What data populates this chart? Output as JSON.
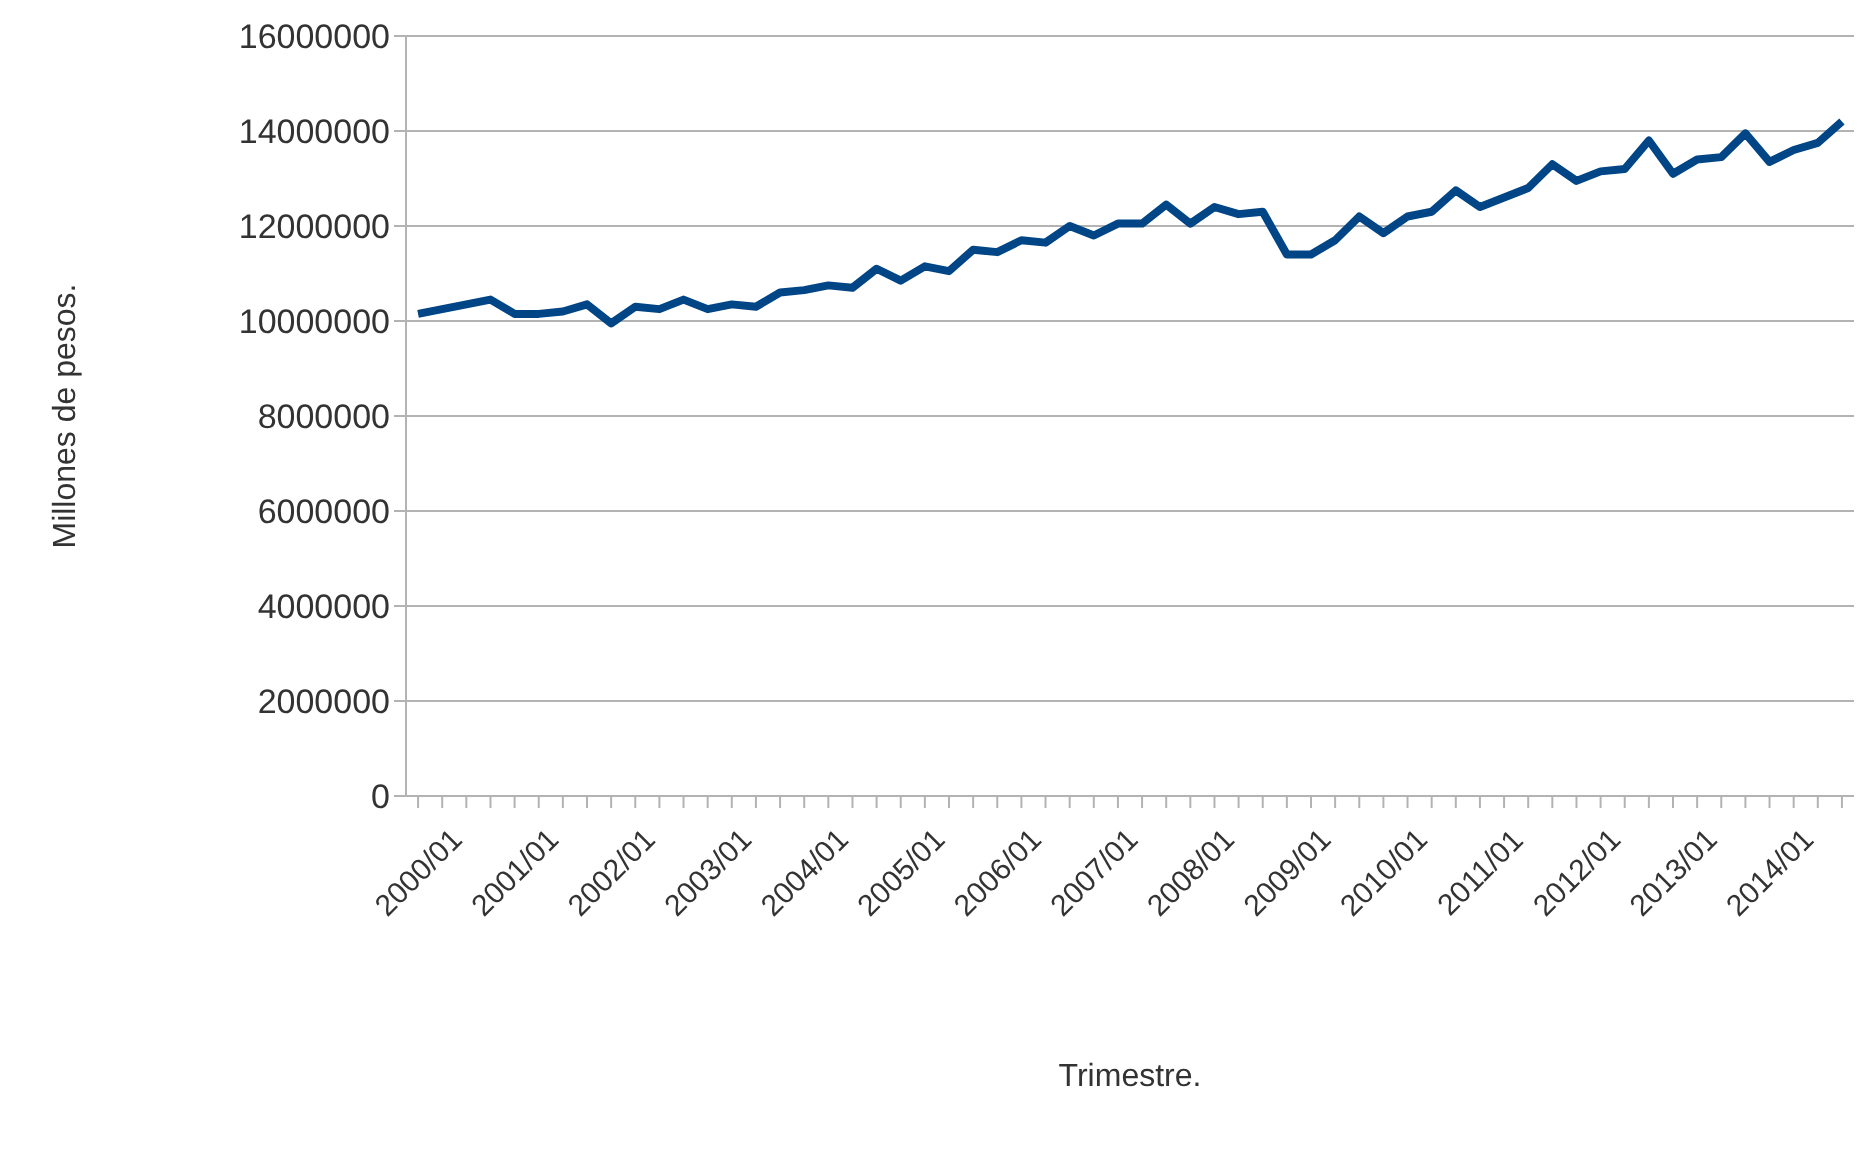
{
  "chart_data": {
    "type": "line",
    "xlabel": "Trimestre.",
    "ylabel": "Millones de pesos.",
    "categories": [
      "2000/01",
      null,
      null,
      null,
      "2001/01",
      null,
      null,
      null,
      "2002/01",
      null,
      null,
      null,
      "2003/01",
      null,
      null,
      null,
      "2004/01",
      null,
      null,
      null,
      "2005/01",
      null,
      null,
      null,
      "2006/01",
      null,
      null,
      null,
      "2007/01",
      null,
      null,
      null,
      "2008/01",
      null,
      null,
      null,
      "2009/01",
      null,
      null,
      null,
      "2010/01",
      null,
      null,
      null,
      "2011/01",
      null,
      null,
      null,
      "2012/01",
      null,
      null,
      null,
      "2013/01",
      null,
      null,
      null,
      "2014/01",
      null,
      null,
      null
    ],
    "series": [
      {
        "color": "#004586",
        "values": [
          10150000,
          10250000,
          10350000,
          10450000,
          10150000,
          10150000,
          10200000,
          10350000,
          9950000,
          10300000,
          10250000,
          10450000,
          10250000,
          10350000,
          10300000,
          10600000,
          10650000,
          10750000,
          10700000,
          11100000,
          10850000,
          11150000,
          11050000,
          11500000,
          11450000,
          11700000,
          11650000,
          12000000,
          11800000,
          12050000,
          12050000,
          12450000,
          12050000,
          12400000,
          12250000,
          12300000,
          11400000,
          11400000,
          11700000,
          12200000,
          11850000,
          12200000,
          12300000,
          12750000,
          12400000,
          12600000,
          12800000,
          13300000,
          12950000,
          13150000,
          13200000,
          13800000,
          13100000,
          13400000,
          13450000,
          13950000,
          13350000,
          13600000,
          13750000,
          14200000
        ]
      }
    ],
    "ylim": [
      0,
      16000000
    ],
    "yticks": [
      0,
      2000000,
      4000000,
      6000000,
      8000000,
      10000000,
      12000000,
      14000000,
      16000000
    ],
    "grid": "y",
    "legend": false,
    "marker": "none",
    "line_style": "solid"
  }
}
